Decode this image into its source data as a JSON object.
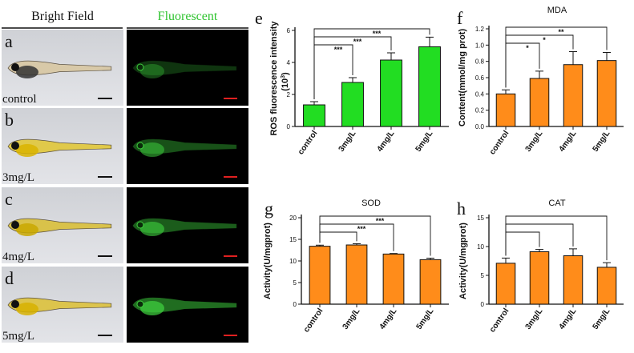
{
  "figure": {
    "column_headers": {
      "bright": "Bright Field",
      "fluor": "Fluorescent"
    },
    "panel_letters": [
      "a",
      "b",
      "c",
      "d"
    ],
    "row_labels": [
      "control",
      "3mg/L",
      "4mg/L",
      "5mg/L"
    ],
    "colors": {
      "bright_bg": "#d4d6da",
      "fluor_bg": "#000000",
      "fish_green": "#3fd23f",
      "scale_dark": "#111111",
      "scale_red": "#e02020",
      "bar_green": "#22dd22",
      "bar_orange": "#ff8c1a"
    }
  },
  "chart_data": [
    {
      "id": "e",
      "letter": "e",
      "type": "bar",
      "title": "",
      "ylabel_line1": "ROS  fluorescence intensity",
      "ylabel_line2": "(10",
      "ylabel_exp": "3",
      "ylabel_close": ")",
      "categories": [
        "control",
        "3mg/L",
        "4mg/L",
        "5mg/L"
      ],
      "values": [
        1.35,
        2.75,
        4.15,
        4.98
      ],
      "errors": [
        0.2,
        0.3,
        0.45,
        0.6
      ],
      "ylim": [
        0,
        6
      ],
      "yticks": [
        0,
        2,
        4,
        6
      ],
      "color": "#22dd22",
      "brackets": [
        {
          "to": 1,
          "label": "***"
        },
        {
          "to": 2,
          "label": "***"
        },
        {
          "to": 3,
          "label": "***"
        }
      ]
    },
    {
      "id": "f",
      "letter": "f",
      "type": "bar",
      "title": "MDA",
      "ylabel_line1": "Content(mmol/mg prot)",
      "categories": [
        "control",
        "3mg/L",
        "4mg/L",
        "5mg/L"
      ],
      "values": [
        0.4,
        0.59,
        0.76,
        0.81
      ],
      "errors": [
        0.05,
        0.09,
        0.16,
        0.1
      ],
      "ylim": [
        0,
        1.2
      ],
      "yticks": [
        0.0,
        0.2,
        0.4,
        0.6,
        0.8,
        1.0,
        1.2
      ],
      "color": "#ff8c1a",
      "brackets": [
        {
          "to": 1,
          "label": "*"
        },
        {
          "to": 2,
          "label": "*"
        },
        {
          "to": 3,
          "label": "**"
        }
      ]
    },
    {
      "id": "g",
      "letter": "g",
      "type": "bar",
      "title": "SOD",
      "ylabel_line1": "Activity(U/mgprot)",
      "categories": [
        "control",
        "3mg/L",
        "4mg/L",
        "5mg/L"
      ],
      "values": [
        13.4,
        13.7,
        11.6,
        10.3
      ],
      "errors": [
        0.25,
        0.3,
        0.12,
        0.35
      ],
      "ylim": [
        0,
        20
      ],
      "yticks": [
        0,
        5,
        10,
        15,
        20
      ],
      "color": "#ff8c1a",
      "brackets": [
        {
          "to": 1,
          "label": ""
        },
        {
          "to": 2,
          "label": "***"
        },
        {
          "to": 3,
          "label": "***"
        }
      ]
    },
    {
      "id": "h",
      "letter": "h",
      "type": "bar",
      "title": "CAT",
      "ylabel_line1": "Activity(U/mgprot)",
      "categories": [
        "control",
        "3mg/L",
        "4mg/L",
        "5mg/L"
      ],
      "values": [
        7.1,
        9.1,
        8.4,
        6.4
      ],
      "errors": [
        0.9,
        0.4,
        1.2,
        0.8
      ],
      "ylim": [
        0,
        15
      ],
      "yticks": [
        0,
        5,
        10,
        15
      ],
      "color": "#ff8c1a",
      "brackets": [
        {
          "to": 1,
          "label": ""
        },
        {
          "to": 2,
          "label": ""
        },
        {
          "to": 3,
          "label": ""
        }
      ]
    }
  ]
}
